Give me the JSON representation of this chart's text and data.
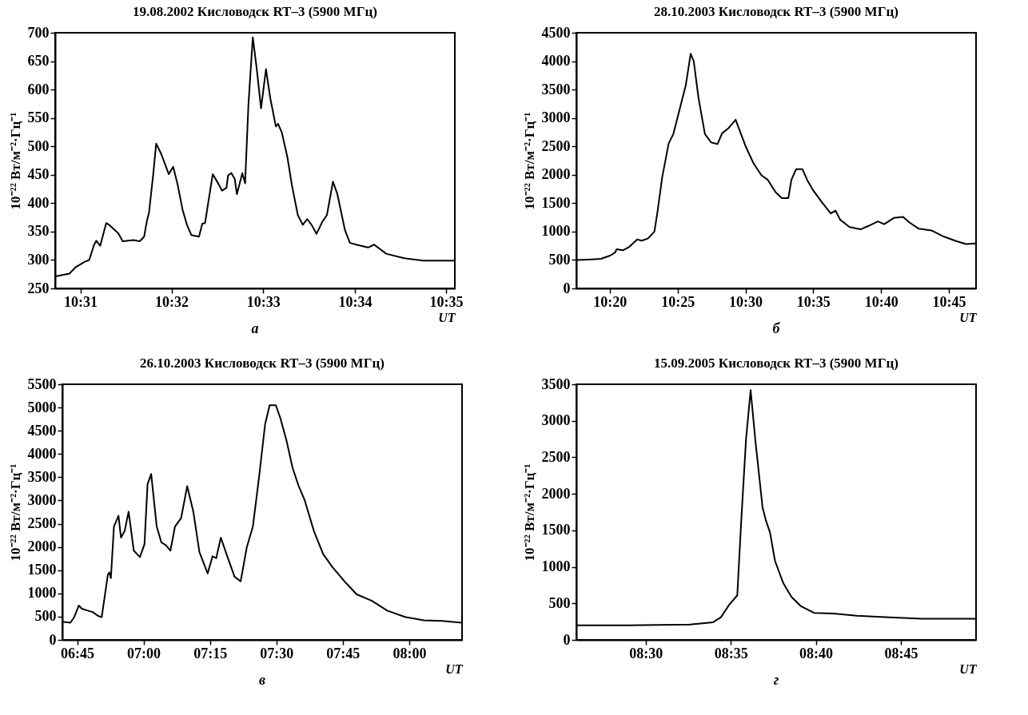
{
  "chart_data": [
    {
      "type": "line",
      "title": "19.08.2002 Кисловодск RT–3 (5900 МГц)",
      "xlabel": "UT",
      "ylabel": "10⁻²² Вт/м⁻²·Гц⁻¹",
      "annotations": [
        "а"
      ],
      "x": [
        10.5121,
        10.5147,
        10.5158,
        10.5175,
        10.5183,
        10.5192,
        10.5196,
        10.5203,
        10.5214,
        10.5219,
        10.5236,
        10.5244,
        10.5264,
        10.5275,
        10.5283,
        10.5288,
        10.5292,
        10.53,
        10.5305,
        10.5314,
        10.5328,
        10.5336,
        10.5344,
        10.5353,
        10.5361,
        10.5369,
        10.5383,
        10.5389,
        10.5394,
        10.5408,
        10.5419,
        10.5425,
        10.5433,
        10.5436,
        10.5442,
        10.5448,
        10.5452,
        10.5462,
        10.5467,
        10.5473,
        10.5481,
        10.5488,
        10.5496,
        10.5505,
        10.5513,
        10.5523,
        10.5527,
        10.5534,
        10.5544,
        10.5552,
        10.5563,
        10.5572,
        10.558,
        10.5588,
        10.5597,
        10.5608,
        10.5616,
        10.5627,
        10.5635,
        10.5649,
        10.5658,
        10.5674,
        10.5691,
        10.5702,
        10.5724,
        10.5757,
        10.5791,
        10.5824,
        10.5849
      ],
      "series": [
        {
          "color": "#000000",
          "values": [
            271,
            276,
            287,
            297,
            300,
            327,
            334,
            325,
            365,
            362,
            347,
            333,
            335,
            333,
            341,
            368,
            384,
            454,
            505,
            487,
            451,
            464,
            433,
            389,
            362,
            344,
            341,
            364,
            365,
            451,
            433,
            422,
            427,
            449,
            453,
            443,
            416,
            453,
            435,
            573,
            692,
            638,
            567,
            636,
            584,
            535,
            540,
            524,
            481,
            433,
            379,
            362,
            372,
            362,
            346,
            368,
            379,
            438,
            416,
            352,
            330,
            326,
            322,
            327,
            311,
            303,
            299,
            299,
            299
          ]
        }
      ],
      "xlim": [
        10.5121,
        10.5849
      ],
      "ylim": [
        250,
        700
      ],
      "yticks": [
        250,
        300,
        350,
        400,
        450,
        500,
        550,
        600,
        650,
        700
      ],
      "xticks": [
        {
          "value": 10.5167,
          "label": "10:31"
        },
        {
          "value": 10.5333,
          "label": "10:32"
        },
        {
          "value": 10.55,
          "label": "10:33"
        },
        {
          "value": 10.5667,
          "label": "10:34"
        },
        {
          "value": 10.5833,
          "label": "10:35"
        }
      ]
    },
    {
      "type": "line",
      "title": "28.10.2003 Кисловодск RT–3 (5900 МГц)",
      "xlabel": "UT",
      "ylabel": "10⁻²² Вт/м⁻²·Гц⁻¹",
      "annotations": [
        "б"
      ],
      "x": [
        10.2923,
        10.3108,
        10.3225,
        10.3342,
        10.3398,
        10.3418,
        10.3495,
        10.3573,
        10.367,
        10.3728,
        10.3805,
        10.3882,
        10.3922,
        10.3978,
        10.4057,
        10.4115,
        10.4172,
        10.4268,
        10.4327,
        10.4365,
        10.4423,
        10.4502,
        10.4578,
        10.4657,
        10.4713,
        10.4792,
        10.488,
        10.4945,
        10.5003,
        10.51,
        10.5197,
        10.5275,
        10.5372,
        10.5448,
        10.5527,
        10.5565,
        10.5623,
        10.57,
        10.5758,
        10.5835,
        10.5932,
        10.6048,
        10.6107,
        10.6163,
        10.628,
        10.6415,
        10.6512,
        10.6628,
        10.6705,
        10.6822,
        10.6937,
        10.7015,
        10.713,
        10.7285,
        10.744,
        10.7595,
        10.771,
        10.7833
      ],
      "series": [
        {
          "color": "#000000",
          "values": [
            500,
            510,
            520,
            580,
            630,
            690,
            670,
            730,
            860,
            840,
            880,
            1000,
            1370,
            1960,
            2550,
            2720,
            3040,
            3580,
            4130,
            4000,
            3360,
            2720,
            2570,
            2540,
            2730,
            2820,
            2970,
            2720,
            2500,
            2200,
            1990,
            1910,
            1690,
            1590,
            1590,
            1910,
            2100,
            2100,
            1910,
            1720,
            1530,
            1320,
            1370,
            1210,
            1080,
            1040,
            1100,
            1180,
            1130,
            1240,
            1260,
            1160,
            1050,
            1020,
            910,
            830,
            780,
            790
          ]
        }
      ],
      "xlim": [
        10.2923,
        10.7833
      ],
      "ylim": [
        0,
        4500
      ],
      "yticks": [
        0,
        500,
        1000,
        1500,
        2000,
        2500,
        3000,
        3500,
        4000,
        4500
      ],
      "xticks": [
        {
          "value": 10.3333,
          "label": "10:20"
        },
        {
          "value": 10.4167,
          "label": "10:25"
        },
        {
          "value": 10.5,
          "label": "10:30"
        },
        {
          "value": 10.5833,
          "label": "10:35"
        },
        {
          "value": 10.6667,
          "label": "10:40"
        },
        {
          "value": 10.75,
          "label": "10:45"
        }
      ]
    },
    {
      "type": "line",
      "title": "26.10.2003 Кисловодск RT–3 (5900 МГц)",
      "xlabel": "UT",
      "ylabel": "10⁻²² Вт/м⁻²·Гц⁻¹",
      "annotations": [
        "в"
      ],
      "x": [
        6.6943,
        6.7242,
        6.739,
        6.7563,
        6.7678,
        6.7908,
        6.808,
        6.831,
        6.8425,
        6.8655,
        6.8713,
        6.877,
        6.8885,
        6.9057,
        6.915,
        6.9287,
        6.9437,
        6.9632,
        6.9862,
        7.0035,
        7.015,
        7.0287,
        7.0495,
        7.0667,
        7.0838,
        7.1012,
        7.1183,
        7.1413,
        7.1643,
        7.1873,
        7.2103,
        7.2413,
        7.2598,
        7.2735,
        7.2908,
        7.3138,
        7.3425,
        7.3655,
        7.3885,
        7.4115,
        7.4345,
        7.4575,
        7.4747,
        7.4977,
        7.515,
        7.538,
        7.561,
        7.5838,
        7.6068,
        7.6413,
        7.6758,
        7.7103,
        7.7563,
        7.8023,
        7.8598,
        7.9172,
        7.9862,
        8.0552,
        8.1242,
        8.1988
      ],
      "series": [
        {
          "color": "#000000",
          "values": [
            390,
            370,
            490,
            740,
            670,
            630,
            600,
            510,
            490,
            1400,
            1450,
            1330,
            2440,
            2670,
            2200,
            2340,
            2760,
            1920,
            1780,
            2060,
            3350,
            3570,
            2440,
            2100,
            2040,
            1920,
            2440,
            2620,
            3310,
            2760,
            1890,
            1430,
            1800,
            1760,
            2200,
            1820,
            1360,
            1260,
            1990,
            2440,
            3490,
            4640,
            5050,
            5050,
            4770,
            4290,
            3700,
            3310,
            3000,
            2340,
            1850,
            1570,
            1260,
            980,
            840,
            630,
            490,
            420,
            410,
            370
          ]
        }
      ],
      "xlim": [
        6.6943,
        8.1988
      ],
      "ylim": [
        0,
        5500
      ],
      "yticks": [
        0,
        500,
        1000,
        1500,
        2000,
        2500,
        3000,
        3500,
        4000,
        4500,
        5000,
        5500
      ],
      "xticks": [
        {
          "value": 6.75,
          "label": "06:45"
        },
        {
          "value": 7,
          "label": "07:00"
        },
        {
          "value": 7.25,
          "label": "07:15"
        },
        {
          "value": 7.5,
          "label": "07:30"
        },
        {
          "value": 7.75,
          "label": "07:45"
        },
        {
          "value": 8,
          "label": "08:00"
        }
      ]
    },
    {
      "type": "line",
      "title": "15.09.2005 Кисловодск RT–3 (5900 МГц)",
      "xlabel": "UT",
      "ylabel": "10⁻²² Вт/м⁻²·Гц⁻¹",
      "annotations": [
        "г"
      ],
      "x": [
        8.432,
        8.4823,
        8.5433,
        8.5657,
        8.5737,
        8.5817,
        8.5897,
        8.5938,
        8.5983,
        8.6028,
        8.6073,
        8.6112,
        8.6145,
        8.6177,
        8.6218,
        8.6267,
        8.6347,
        8.6427,
        8.6522,
        8.665,
        8.6843,
        8.7067,
        8.7388,
        8.7708,
        8.8237
      ],
      "series": [
        {
          "color": "#000000",
          "values": [
            200,
            200,
            210,
            240,
            310,
            480,
            610,
            1680,
            2750,
            3420,
            2750,
            2240,
            1810,
            1640,
            1470,
            1080,
            780,
            590,
            460,
            370,
            360,
            330,
            310,
            290,
            290
          ]
        }
      ],
      "xlim": [
        8.432,
        8.8237
      ],
      "ylim": [
        0,
        3500
      ],
      "yticks": [
        0,
        500,
        1000,
        1500,
        2000,
        2500,
        3000,
        3500
      ],
      "xticks": [
        {
          "value": 8.5,
          "label": "08:30"
        },
        {
          "value": 8.5833,
          "label": "08:35"
        },
        {
          "value": 8.6667,
          "label": "08:40"
        },
        {
          "value": 8.75,
          "label": "08:45"
        }
      ]
    }
  ]
}
